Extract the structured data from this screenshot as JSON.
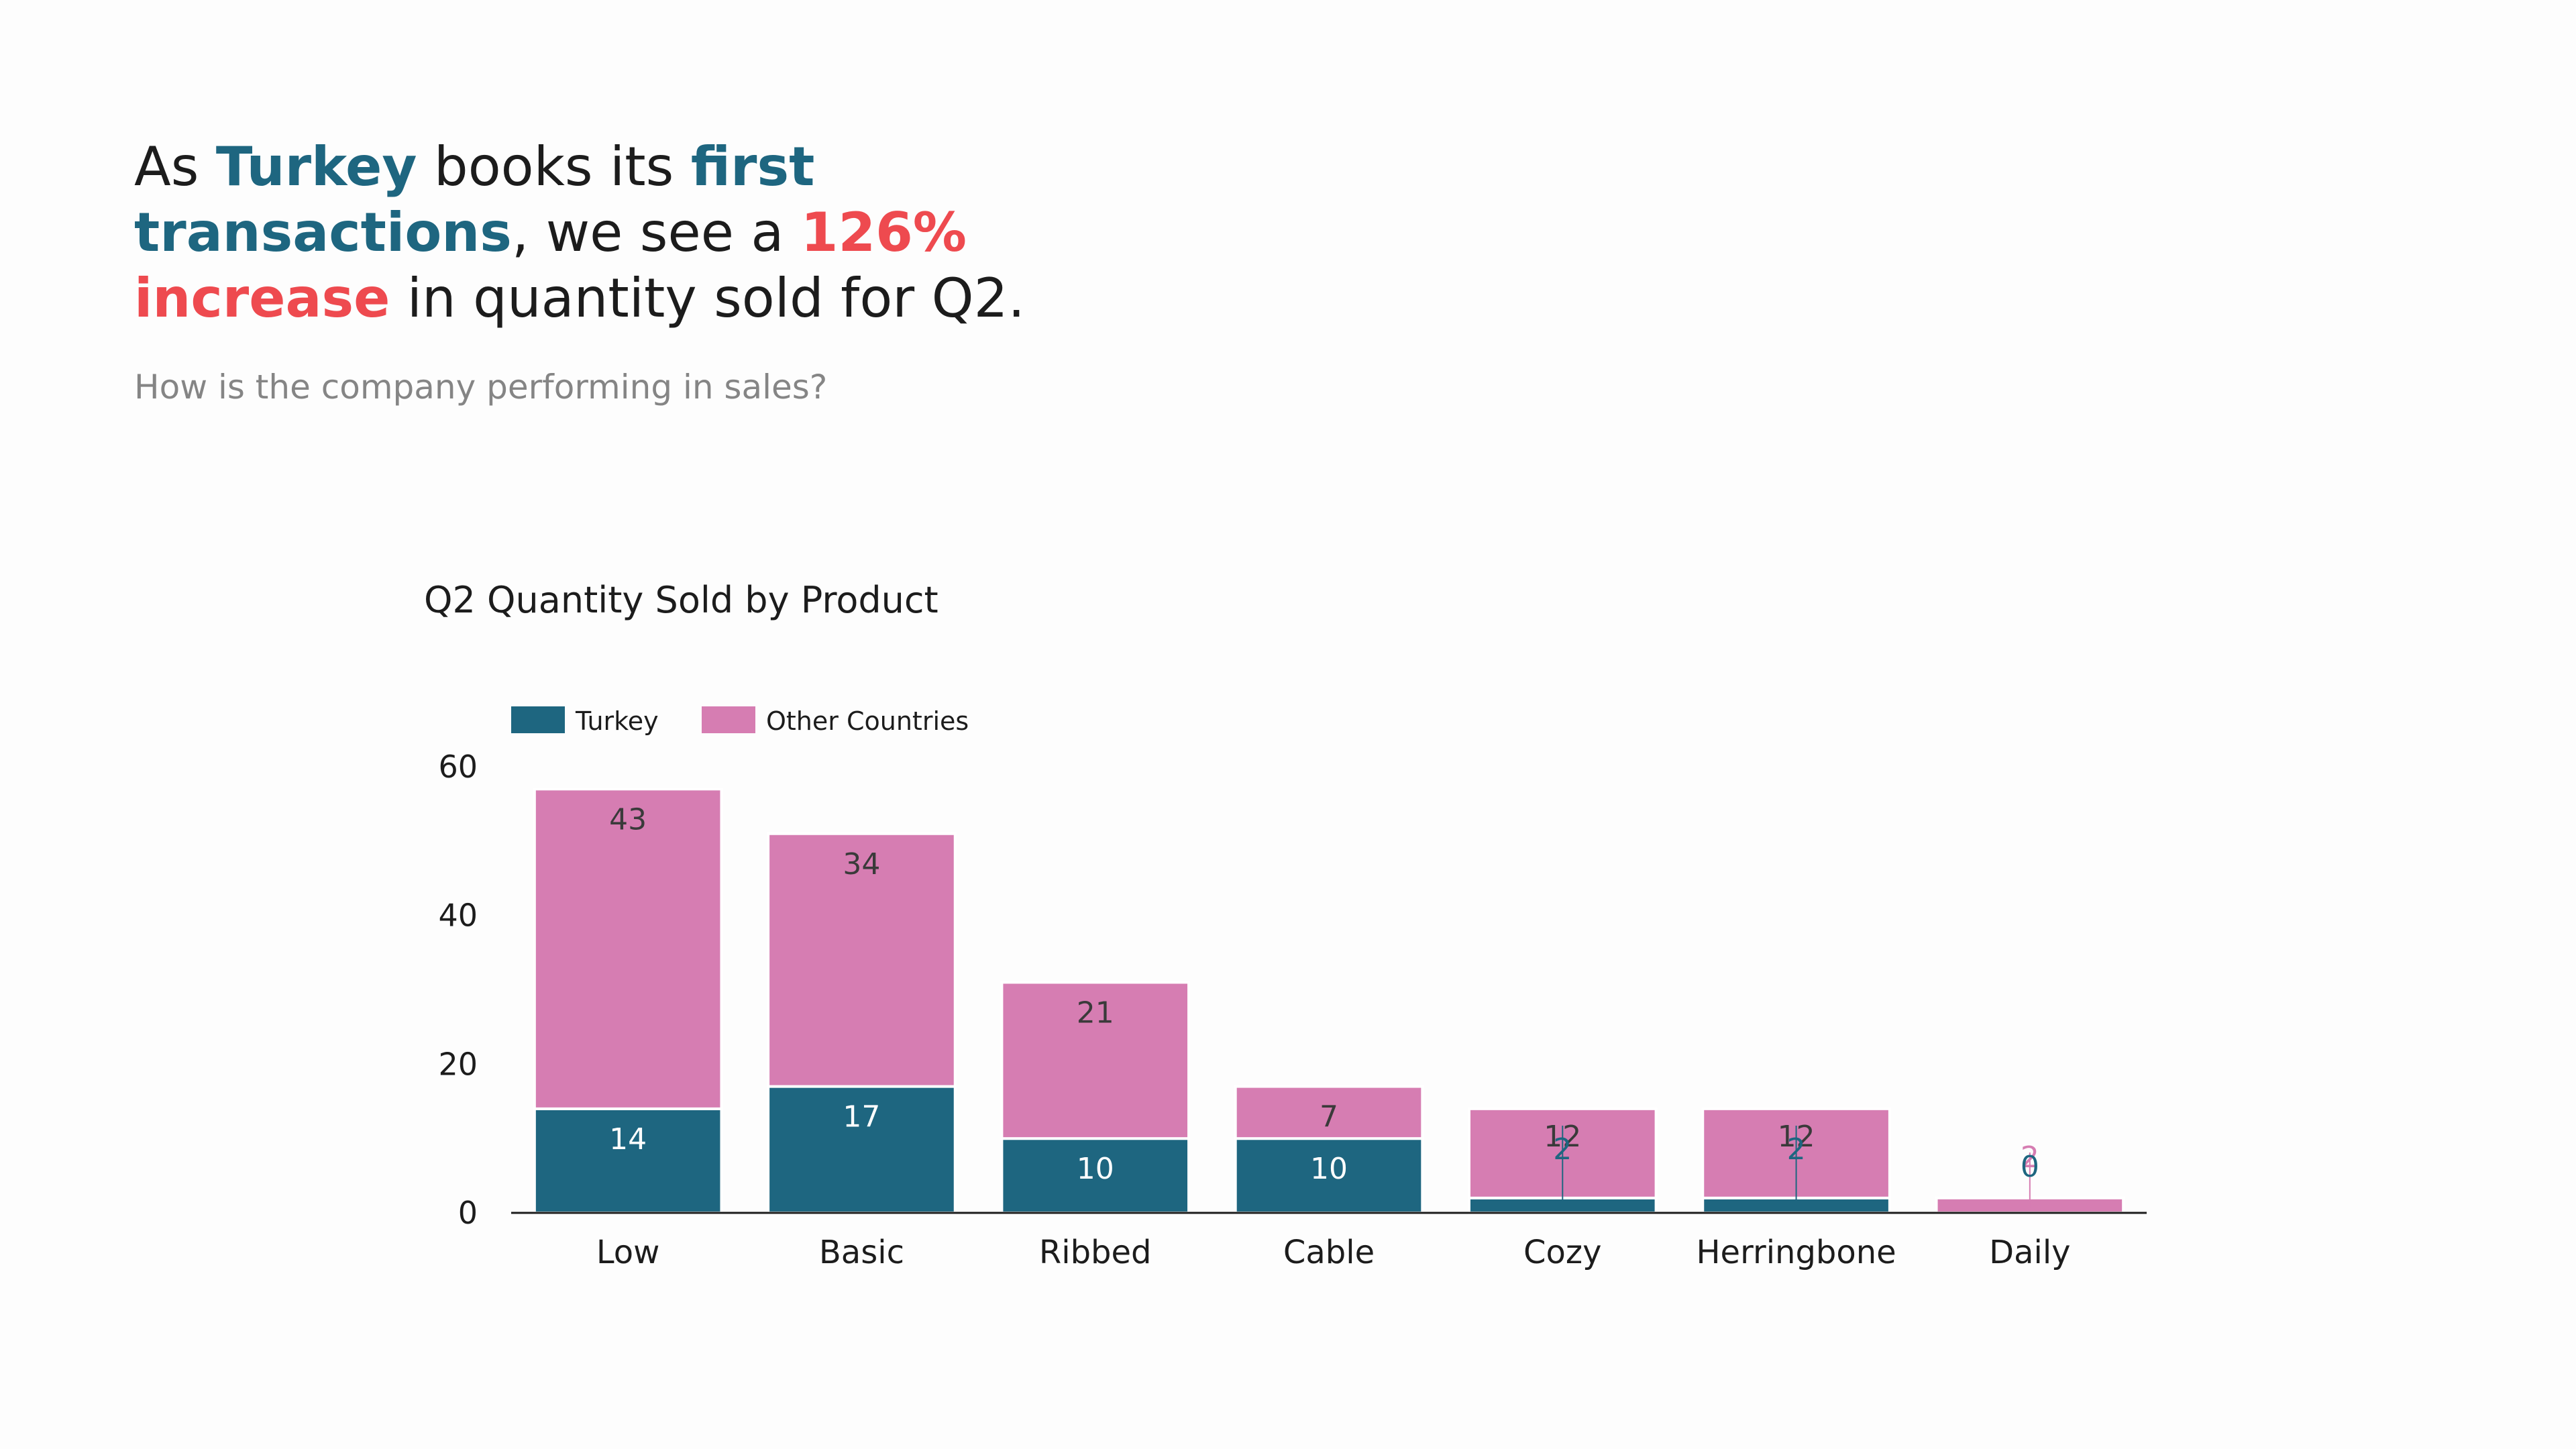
{
  "headline": {
    "p1": "As ",
    "p2": "Turkey",
    "p3": " books its ",
    "p4": "first transactions",
    "p5": ", we see a ",
    "p6": "126% increase",
    "p7": " in quantity sold for Q2."
  },
  "subtitle": "How is the company performing in sales?",
  "colors": {
    "turkey": "#1e6680",
    "other": "#d67db2",
    "accent_red": "#ee4a4f",
    "text": "#1c1c1c",
    "muted": "#858585"
  },
  "chart_data": {
    "type": "bar",
    "stacked": true,
    "title": "Q2 Quantity Sold by Product",
    "xlabel": "",
    "ylabel": "",
    "ylim": [
      0,
      60
    ],
    "yticks": [
      0,
      20,
      40,
      60
    ],
    "grid": false,
    "legend_position": "top-left",
    "categories": [
      "Low",
      "Basic",
      "Ribbed",
      "Cable",
      "Cozy",
      "Herringbone",
      "Daily"
    ],
    "series": [
      {
        "name": "Turkey",
        "values": [
          14,
          17,
          10,
          10,
          2,
          2,
          0
        ]
      },
      {
        "name": "Other Countries",
        "values": [
          43,
          34,
          21,
          7,
          12,
          12,
          2
        ]
      }
    ]
  }
}
